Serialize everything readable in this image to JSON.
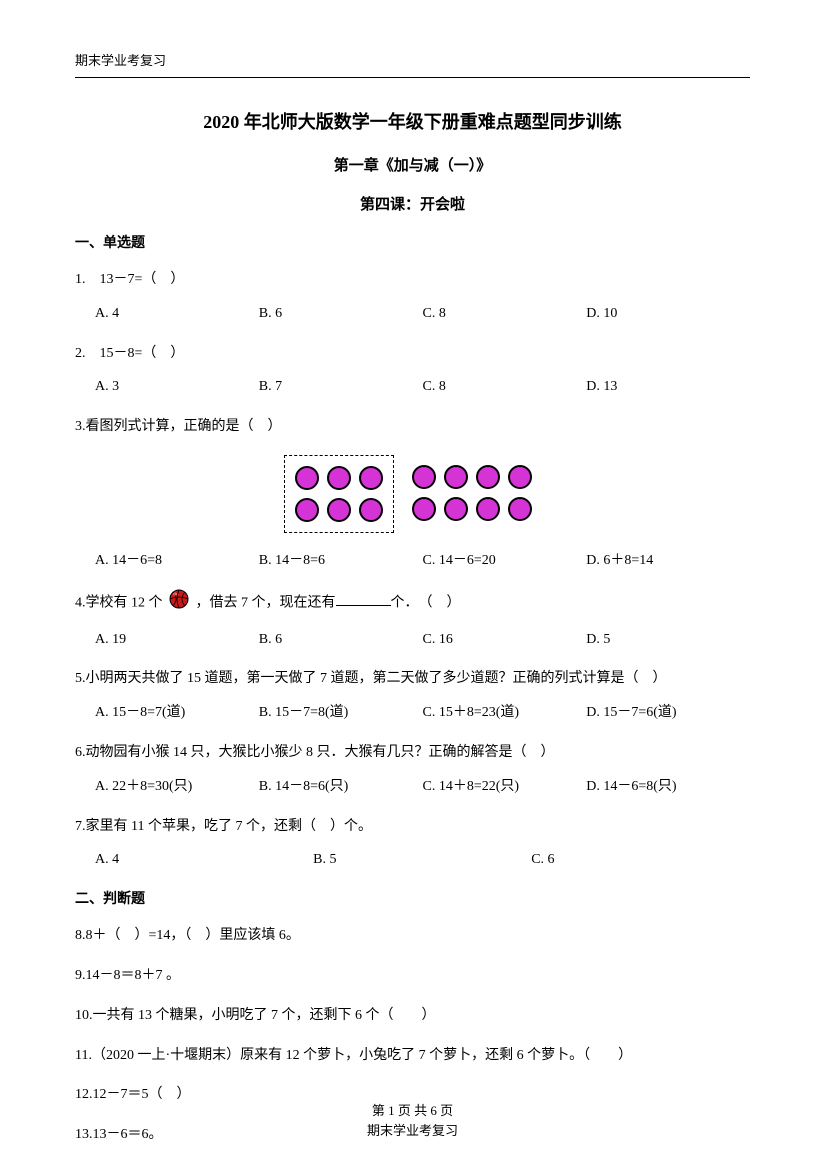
{
  "header": "期末学业考复习",
  "mainTitle": "2020 年北师大版数学一年级下册重难点题型同步训练",
  "subtitle": "第一章《加与减（一）》",
  "lessonTitle": "第四课：开会啦",
  "section1": "一、单选题",
  "section2": "二、判断题",
  "q1": {
    "text": "1.　13－7=（　）",
    "a": "A. 4",
    "b": "B. 6",
    "c": "C. 8",
    "d": "D. 10"
  },
  "q2": {
    "text": "2.　15－8=（　）",
    "a": "A. 3",
    "b": "B. 7",
    "c": "C. 8",
    "d": "D. 13"
  },
  "q3": {
    "text": "3.看图列式计算，正确的是（　）",
    "a": "A. 14－6=8",
    "b": "B. 14－8=6",
    "c": "C. 14－6=20",
    "d": "D. 6＋8=14",
    "figure": {
      "dotColor": "#d633d6",
      "dotSize": 24,
      "group1": {
        "rows": 2,
        "cols": 3,
        "dashed": true
      },
      "group2": {
        "rows": 2,
        "cols": 4,
        "dashed": false
      }
    }
  },
  "q4": {
    "pre": "4.学校有 12 个",
    "post": "，借去 7 个，现在还有",
    "suffix": "个．　（　）",
    "a": "A. 19",
    "b": "B. 6",
    "c": "C. 16",
    "d": "D. 5",
    "ballColor": "#cc1818",
    "ballSize": 20
  },
  "q5": {
    "text": "5.小明两天共做了 15 道题，第一天做了 7 道题，第二天做了多少道题？正确的列式计算是（　）",
    "a": "A. 15－8=7(道)",
    "b": "B. 15－7=8(道)",
    "c": "C. 15＋8=23(道)",
    "d": "D. 15－7=6(道)"
  },
  "q6": {
    "text": "6.动物园有小猴 14 只，大猴比小猴少 8 只．大猴有几只？正确的解答是（　）",
    "a": "A. 22＋8=30(只)",
    "b": "B. 14－8=6(只)",
    "c": "C. 14＋8=22(只)",
    "d": "D. 14－6=8(只)"
  },
  "q7": {
    "text": "7.家里有 11 个苹果，吃了 7 个，还剩（　）个。",
    "a": "A. 4",
    "b": "B. 5",
    "c": "C. 6"
  },
  "q8": "8.8＋（　）=14，（　）里应该填 6。",
  "q9": "9.14－8＝8＋7 。",
  "q10": "10.一共有 13 个糖果，小明吃了 7 个，还剩下 6 个（　　）",
  "q11": "11.（2020 一上·十堰期末）原来有 12 个萝卜，小兔吃了 7 个萝卜，还剩 6 个萝卜。（　　）",
  "q12": "12.12－7＝5（　）",
  "q13": "13.13－6＝6。",
  "footer1": "第 1 页 共 6 页",
  "footer2": "期末学业考复习"
}
